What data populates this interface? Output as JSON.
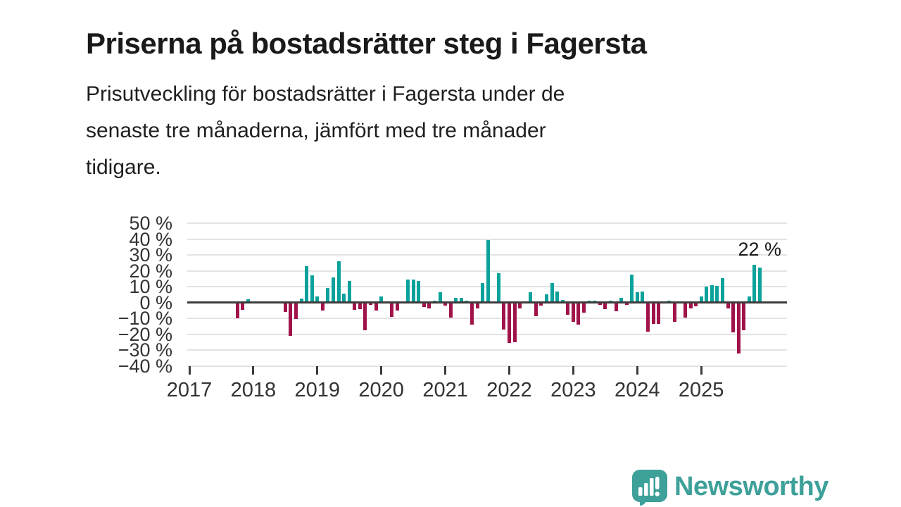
{
  "title": "Priserna på bostadsrätter steg i Fagersta",
  "subtitle_lines": [
    "Prisutveckling för bostadsrätter i Fagersta under de",
    "senaste tre månaderna, jämfört med tre månader",
    "tidigare."
  ],
  "annotation": "22 %",
  "branding": {
    "name": "Newsworthy",
    "icon": "bar-chart-speech-bubble-icon"
  },
  "colors": {
    "positive_bar": "#0aa29b",
    "negative_bar": "#a0134a",
    "zero_line": "#3c3c3c",
    "grid": "#e3e3e3",
    "axis_text": "#333333",
    "brand_teal": "#3da099"
  },
  "chart_data": {
    "type": "bar",
    "unit": "%",
    "ylim": [
      -40,
      50
    ],
    "grid": true,
    "yticks": [
      "50 %",
      "40 %",
      "30 %",
      "20 %",
      "10 %",
      "0 %",
      "−10 %",
      "−20 %",
      "−30 %",
      "−40 %"
    ],
    "ytick_values": [
      50,
      40,
      30,
      20,
      10,
      0,
      -10,
      -20,
      -30,
      -40
    ],
    "xticks": [
      "2017",
      "2018",
      "2019",
      "2020",
      "2021",
      "2022",
      "2023",
      "2024",
      "2025"
    ],
    "x_start_month": "2017-01",
    "last_value_label": "22 %",
    "series": [
      {
        "m": "2017-10",
        "v": -10
      },
      {
        "m": "2017-11",
        "v": -4.5
      },
      {
        "m": "2017-12",
        "v": 2
      },
      {
        "m": "2018-07",
        "v": -6
      },
      {
        "m": "2018-08",
        "v": -21
      },
      {
        "m": "2018-09",
        "v": -10.5
      },
      {
        "m": "2018-10",
        "v": 2.5
      },
      {
        "m": "2018-11",
        "v": 23
      },
      {
        "m": "2018-12",
        "v": 17
      },
      {
        "m": "2019-01",
        "v": 4
      },
      {
        "m": "2019-02",
        "v": -5
      },
      {
        "m": "2019-03",
        "v": 9
      },
      {
        "m": "2019-04",
        "v": 16
      },
      {
        "m": "2019-05",
        "v": 26
      },
      {
        "m": "2019-06",
        "v": 5.5
      },
      {
        "m": "2019-07",
        "v": 13.5
      },
      {
        "m": "2019-08",
        "v": -4.5
      },
      {
        "m": "2019-09",
        "v": -4
      },
      {
        "m": "2019-10",
        "v": -17.5
      },
      {
        "m": "2019-11",
        "v": -1.5
      },
      {
        "m": "2019-12",
        "v": -5
      },
      {
        "m": "2020-01",
        "v": 4
      },
      {
        "m": "2020-03",
        "v": -9
      },
      {
        "m": "2020-04",
        "v": -5
      },
      {
        "m": "2020-06",
        "v": 14.5
      },
      {
        "m": "2020-07",
        "v": 14.5
      },
      {
        "m": "2020-08",
        "v": 13.5
      },
      {
        "m": "2020-09",
        "v": -3
      },
      {
        "m": "2020-10",
        "v": -3.5
      },
      {
        "m": "2020-11",
        "v": 1
      },
      {
        "m": "2020-12",
        "v": 6.5
      },
      {
        "m": "2021-01",
        "v": -2
      },
      {
        "m": "2021-02",
        "v": -9.5
      },
      {
        "m": "2021-03",
        "v": 3
      },
      {
        "m": "2021-04",
        "v": 3
      },
      {
        "m": "2021-05",
        "v": 1
      },
      {
        "m": "2021-06",
        "v": -14
      },
      {
        "m": "2021-07",
        "v": -3.5
      },
      {
        "m": "2021-08",
        "v": 12.5
      },
      {
        "m": "2021-09",
        "v": 39.5
      },
      {
        "m": "2021-11",
        "v": 18.5
      },
      {
        "m": "2021-12",
        "v": -17
      },
      {
        "m": "2022-01",
        "v": -25.5
      },
      {
        "m": "2022-02",
        "v": -25
      },
      {
        "m": "2022-03",
        "v": -3.5
      },
      {
        "m": "2022-05",
        "v": 6.5
      },
      {
        "m": "2022-06",
        "v": -8.5
      },
      {
        "m": "2022-07",
        "v": -2
      },
      {
        "m": "2022-08",
        "v": 5
      },
      {
        "m": "2022-09",
        "v": 12.5
      },
      {
        "m": "2022-10",
        "v": 7
      },
      {
        "m": "2022-11",
        "v": 1.5
      },
      {
        "m": "2022-12",
        "v": -7.5
      },
      {
        "m": "2023-01",
        "v": -12
      },
      {
        "m": "2023-02",
        "v": -14
      },
      {
        "m": "2023-03",
        "v": -6.5
      },
      {
        "m": "2023-04",
        "v": 1
      },
      {
        "m": "2023-05",
        "v": 1
      },
      {
        "m": "2023-06",
        "v": -1.5
      },
      {
        "m": "2023-07",
        "v": -4
      },
      {
        "m": "2023-08",
        "v": 1
      },
      {
        "m": "2023-09",
        "v": -5.5
      },
      {
        "m": "2023-10",
        "v": 3
      },
      {
        "m": "2023-11",
        "v": -1.5
      },
      {
        "m": "2023-12",
        "v": 17.5
      },
      {
        "m": "2024-01",
        "v": 6.5
      },
      {
        "m": "2024-02",
        "v": 7
      },
      {
        "m": "2024-03",
        "v": -18.5
      },
      {
        "m": "2024-04",
        "v": -13.5
      },
      {
        "m": "2024-05",
        "v": -13.5
      },
      {
        "m": "2024-07",
        "v": 1
      },
      {
        "m": "2024-08",
        "v": -12
      },
      {
        "m": "2024-10",
        "v": -9.5
      },
      {
        "m": "2024-11",
        "v": -3.5
      },
      {
        "m": "2024-12",
        "v": -2.5
      },
      {
        "m": "2025-01",
        "v": 4
      },
      {
        "m": "2025-02",
        "v": 10
      },
      {
        "m": "2025-03",
        "v": 11
      },
      {
        "m": "2025-04",
        "v": 10.5
      },
      {
        "m": "2025-05",
        "v": 15.5
      },
      {
        "m": "2025-06",
        "v": -3.5
      },
      {
        "m": "2025-07",
        "v": -19
      },
      {
        "m": "2025-08",
        "v": -32
      },
      {
        "m": "2025-09",
        "v": -17.5
      },
      {
        "m": "2025-10",
        "v": 4
      },
      {
        "m": "2025-11",
        "v": 24
      },
      {
        "m": "2025-12",
        "v": 22
      }
    ]
  }
}
